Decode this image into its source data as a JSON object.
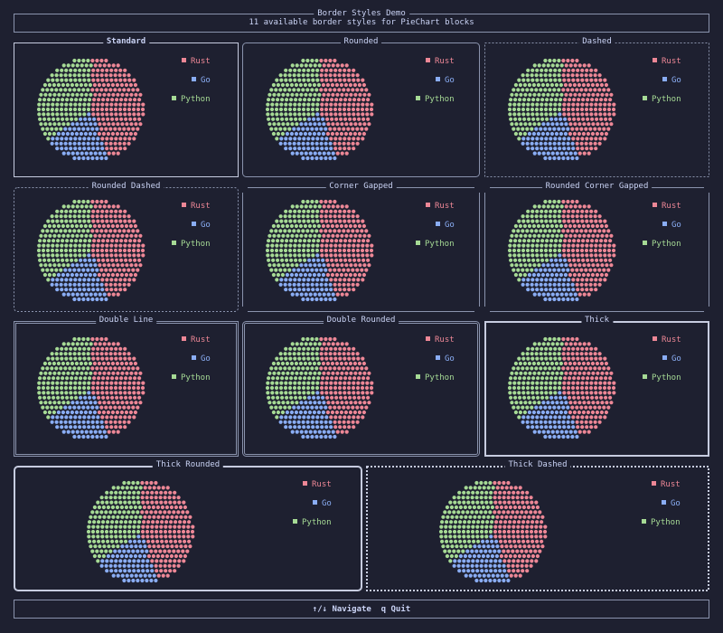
{
  "header": {
    "title": "Border Styles Demo",
    "subtitle": "11 available border styles for PieChart blocks"
  },
  "footer": {
    "navigate_label": "↑/↓ Navigate",
    "quit_label": "q Quit"
  },
  "colors": {
    "background": "#1e2030",
    "border": "#8a93ad",
    "border_active": "#c7cce0",
    "rust": "#ed8796",
    "go": "#8aadf4",
    "python": "#a6da95"
  },
  "chart_data": {
    "type": "pie",
    "categories": [
      "Rust",
      "Go",
      "Python"
    ],
    "values": [
      45,
      20,
      35
    ],
    "colors": [
      "#ed8796",
      "#8aadf4",
      "#a6da95"
    ],
    "legend_position": "top-right"
  },
  "panels": [
    {
      "title": "Standard",
      "style": "standard",
      "selected": true,
      "legend": [
        "Rust",
        "Go",
        "Python"
      ]
    },
    {
      "title": "Rounded",
      "style": "rounded",
      "legend": [
        "Rust",
        "Go",
        "Python"
      ]
    },
    {
      "title": "Dashed",
      "style": "dashed",
      "legend": [
        "Rust",
        "Go",
        "Python"
      ]
    },
    {
      "title": "Rounded Dashed",
      "style": "rounded-dashed",
      "legend": [
        "Rust",
        "Go",
        "Python"
      ]
    },
    {
      "title": "Corner Gapped",
      "style": "corner-gapped",
      "legend": [
        "Rust",
        "Go",
        "Python"
      ]
    },
    {
      "title": "Rounded Corner Gapped",
      "style": "rounded-corner-gapped",
      "legend": [
        "Rust",
        "Go",
        "Python"
      ]
    },
    {
      "title": "Double Line",
      "style": "double",
      "legend": [
        "Rust",
        "Go",
        "Python"
      ]
    },
    {
      "title": "Double Rounded",
      "style": "double-rounded",
      "legend": [
        "Rust",
        "Go",
        "Python"
      ]
    },
    {
      "title": "Thick",
      "style": "thick",
      "legend": [
        "Rust",
        "Go",
        "Python"
      ]
    },
    {
      "title": "Thick Rounded",
      "style": "thick-rounded",
      "legend": [
        "Rust",
        "Go",
        "Python"
      ]
    },
    {
      "title": "Thick Dashed",
      "style": "thick-dashed",
      "legend": [
        "Rust",
        "Go",
        "Python"
      ]
    }
  ]
}
